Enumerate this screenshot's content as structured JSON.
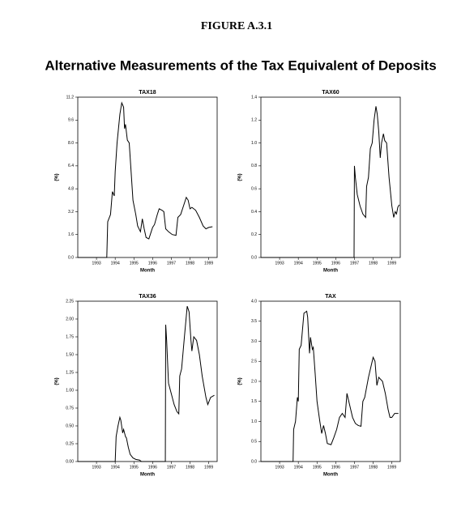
{
  "figure_label": "FIGURE A.3.1",
  "subtitle": "Alternative Measurements of the Tax Equivalent of Deposits",
  "chart_data": [
    {
      "type": "line",
      "title": "TAX18",
      "xlabel": "Month",
      "ylabel": "(%)",
      "color": "#000000",
      "xlim": [
        1992,
        1999.45
      ],
      "xticks": [
        1993,
        1994,
        1995,
        1996,
        1997,
        1998,
        1999
      ],
      "ylim": [
        0,
        11.2
      ],
      "yticks": [
        {
          "value": 0,
          "label": "0.0"
        },
        1.6,
        3.2,
        4.8,
        6.4,
        {
          "value": 8,
          "label": "8.0"
        },
        9.6,
        11.2
      ],
      "x": [
        1992.0,
        1993.55,
        1993.6,
        1993.75,
        1993.85,
        1993.95,
        1994.0,
        1994.1,
        1994.25,
        1994.35,
        1994.45,
        1994.5,
        1994.55,
        1994.65,
        1994.75,
        1994.85,
        1994.95,
        1995.1,
        1995.2,
        1995.35,
        1995.45,
        1995.55,
        1995.65,
        1995.8,
        1995.9,
        1996.0,
        1996.1,
        1996.25,
        1996.35,
        1996.5,
        1996.6,
        1996.7,
        1996.85,
        1997.05,
        1997.25,
        1997.35,
        1997.5,
        1997.65,
        1997.8,
        1997.9,
        1998.0,
        1998.1,
        1998.3,
        1998.5,
        1998.7,
        1998.85,
        1999.0,
        1999.2
      ],
      "values": [
        0,
        0,
        2.5,
        3.0,
        4.6,
        4.3,
        6.0,
        8.0,
        10.0,
        10.8,
        10.5,
        9.0,
        9.3,
        8.2,
        8.0,
        6.0,
        4.0,
        3.0,
        2.2,
        1.8,
        2.7,
        2.0,
        1.4,
        1.3,
        1.7,
        2.1,
        2.3,
        3.0,
        3.4,
        3.3,
        3.2,
        2.0,
        1.8,
        1.6,
        1.55,
        2.8,
        3.0,
        3.6,
        4.2,
        4.0,
        3.4,
        3.5,
        3.3,
        2.8,
        2.2,
        2.0,
        2.1,
        2.15
      ]
    },
    {
      "type": "line",
      "title": "TAX60",
      "xlabel": "Month",
      "ylabel": "(%)",
      "color": "#000000",
      "xlim": [
        1992,
        1999.45
      ],
      "xticks": [
        1993,
        1994,
        1995,
        1996,
        1997,
        1998,
        1999
      ],
      "ylim": [
        0,
        1.4
      ],
      "yticks": [
        {
          "value": 0,
          "label": "0.0"
        },
        0.2,
        0.4,
        0.6,
        0.8,
        {
          "value": 1,
          "label": "1.0"
        },
        1.2,
        1.4
      ],
      "x": [
        1992.0,
        1996.98,
        1997.0,
        1997.05,
        1997.15,
        1997.3,
        1997.45,
        1997.6,
        1997.65,
        1997.75,
        1997.85,
        1997.95,
        1998.05,
        1998.15,
        1998.22,
        1998.3,
        1998.38,
        1998.45,
        1998.55,
        1998.62,
        1998.72,
        1998.85,
        1999.0,
        1999.1,
        1999.18,
        1999.25,
        1999.32,
        1999.4
      ],
      "values": [
        0,
        0,
        0.8,
        0.7,
        0.55,
        0.45,
        0.38,
        0.35,
        0.62,
        0.7,
        0.95,
        1.0,
        1.2,
        1.32,
        1.25,
        1.1,
        0.87,
        1.0,
        1.08,
        1.02,
        1.0,
        0.7,
        0.45,
        0.35,
        0.4,
        0.38,
        0.44,
        0.46
      ]
    },
    {
      "type": "line",
      "title": "TAX36",
      "xlabel": "Month",
      "ylabel": "(%)",
      "color": "#000000",
      "xlim": [
        1992,
        1999.45
      ],
      "xticks": [
        1993,
        1994,
        1995,
        1996,
        1997,
        1998,
        1999
      ],
      "ylim": [
        0,
        2.25
      ],
      "yticks": [
        {
          "value": 0,
          "label": "0.00"
        },
        0.25,
        {
          "value": 0.5,
          "label": "0.50"
        },
        0.75,
        {
          "value": 1,
          "label": "1.00"
        },
        1.25,
        {
          "value": 1.5,
          "label": "1.50"
        },
        1.75,
        {
          "value": 2,
          "label": "2.00"
        },
        2.25
      ],
      "x": [
        1992.0,
        1994.0,
        1994.05,
        1994.15,
        1994.25,
        1994.3,
        1994.4,
        1994.45,
        1994.55,
        1994.6,
        1994.7,
        1994.8,
        1994.95,
        1995.1,
        1995.3,
        1995.4,
        1996.68,
        1996.7,
        1996.75,
        1996.85,
        1997.0,
        1997.15,
        1997.3,
        1997.4,
        1997.45,
        1997.55,
        1997.7,
        1997.85,
        1997.95,
        1998.05,
        1998.1,
        1998.2,
        1998.35,
        1998.5,
        1998.65,
        1998.85,
        1998.95,
        1999.1,
        1999.3
      ],
      "values": [
        0,
        0,
        0.35,
        0.5,
        0.62,
        0.58,
        0.4,
        0.45,
        0.35,
        0.33,
        0.2,
        0.1,
        0.05,
        0.03,
        0.02,
        0,
        0,
        1.92,
        1.7,
        1.1,
        0.95,
        0.8,
        0.7,
        0.67,
        1.2,
        1.3,
        1.75,
        2.18,
        2.1,
        1.7,
        1.55,
        1.75,
        1.7,
        1.5,
        1.2,
        0.9,
        0.8,
        0.9,
        0.93
      ]
    },
    {
      "type": "line",
      "title": "TAX",
      "xlabel": "Month",
      "ylabel": "(%)",
      "color": "#000000",
      "xlim": [
        1992,
        1999.45
      ],
      "xticks": [
        1993,
        1994,
        1995,
        1996,
        1997,
        1998,
        1999
      ],
      "ylim": [
        0,
        4
      ],
      "yticks": [
        {
          "value": 0,
          "label": "0.0"
        },
        0.5,
        {
          "value": 1,
          "label": "1.0"
        },
        1.5,
        {
          "value": 2,
          "label": "2.0"
        },
        2.5,
        {
          "value": 3,
          "label": "3.0"
        },
        3.5,
        {
          "value": 4,
          "label": "4.0"
        }
      ],
      "x": [
        1992.0,
        1993.72,
        1993.75,
        1993.85,
        1993.95,
        1994.0,
        1994.05,
        1994.15,
        1994.3,
        1994.45,
        1994.5,
        1994.6,
        1994.65,
        1994.75,
        1994.8,
        1994.9,
        1995.0,
        1995.15,
        1995.25,
        1995.35,
        1995.45,
        1995.55,
        1995.75,
        1995.9,
        1996.05,
        1996.2,
        1996.35,
        1996.5,
        1996.6,
        1996.75,
        1996.9,
        1997.05,
        1997.2,
        1997.35,
        1997.45,
        1997.55,
        1997.75,
        1997.85,
        1998.0,
        1998.1,
        1998.2,
        1998.3,
        1998.5,
        1998.65,
        1998.8,
        1998.9,
        1999.0,
        1999.15,
        1999.35
      ],
      "values": [
        0,
        0,
        0.8,
        1.0,
        1.6,
        1.5,
        2.8,
        2.9,
        3.7,
        3.75,
        3.6,
        2.7,
        3.1,
        2.8,
        2.85,
        2.2,
        1.5,
        1.0,
        0.7,
        0.9,
        0.7,
        0.45,
        0.42,
        0.6,
        0.8,
        1.1,
        1.2,
        1.1,
        1.7,
        1.4,
        1.1,
        0.95,
        0.9,
        0.88,
        1.5,
        1.6,
        2.1,
        2.3,
        2.6,
        2.5,
        1.9,
        2.1,
        2.0,
        1.7,
        1.3,
        1.1,
        1.1,
        1.2,
        1.2
      ]
    }
  ]
}
